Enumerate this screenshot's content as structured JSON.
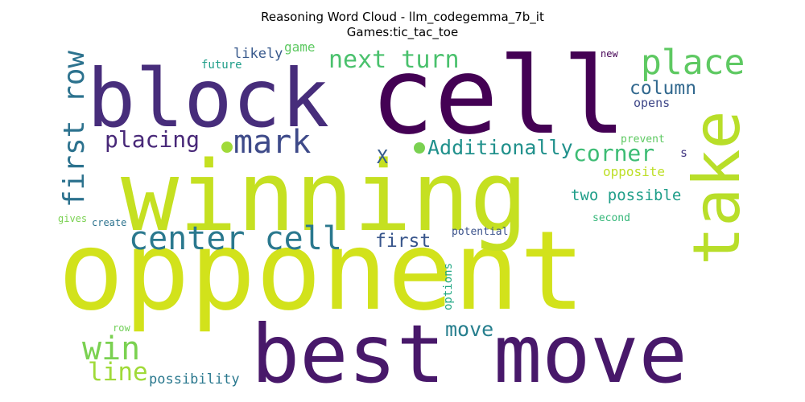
{
  "chart_data": {
    "type": "wordcloud",
    "title": "Reasoning Word Cloud - llm_codegemma_7b_it",
    "subtitle": "Games:tic_tac_toe",
    "words": [
      {
        "text": "opponent",
        "color": "#d2e21b"
      },
      {
        "text": "winning",
        "color": "#c5e021"
      },
      {
        "text": "cell",
        "color": "#440154"
      },
      {
        "text": "best move",
        "color": "#48186a"
      },
      {
        "text": "block",
        "color": "#472d7b"
      },
      {
        "text": "take",
        "color": "#b8de29"
      },
      {
        "text": "place",
        "color": "#5ec962"
      },
      {
        "text": "center cell",
        "color": "#2a788e"
      },
      {
        "text": "first row",
        "color": "#2c728e"
      },
      {
        "text": "mark",
        "color": "#3e4a89"
      },
      {
        "text": "next turn",
        "color": "#4ac16d"
      },
      {
        "text": "win",
        "color": "#7ad151"
      },
      {
        "text": "line",
        "color": "#a0da39"
      },
      {
        "text": "placing",
        "color": "#482878"
      },
      {
        "text": "Additionally",
        "color": "#21918c"
      },
      {
        "text": "corner",
        "color": "#3dbc74"
      },
      {
        "text": "column",
        "color": "#31688e"
      },
      {
        "text": "move",
        "color": "#277f8e"
      },
      {
        "text": "first",
        "color": "#39568c"
      },
      {
        "text": "two possible",
        "color": "#1f9e89"
      },
      {
        "text": "X",
        "color": "#365c8d"
      },
      {
        "text": "possibility",
        "color": "#2a788e"
      },
      {
        "text": "opposite",
        "color": "#bddf26"
      },
      {
        "text": "likely",
        "color": "#38598c"
      },
      {
        "text": "game",
        "color": "#5ec962"
      },
      {
        "text": "opens",
        "color": "#3f4788"
      },
      {
        "text": "future",
        "color": "#1f9e89"
      },
      {
        "text": "options",
        "color": "#22a884"
      },
      {
        "text": "potential",
        "color": "#3b528b"
      },
      {
        "text": "second",
        "color": "#35b779"
      },
      {
        "text": "prevent",
        "color": "#5ec962"
      },
      {
        "text": "gives",
        "color": "#7ad151"
      },
      {
        "text": "create",
        "color": "#2c728e"
      },
      {
        "text": "row",
        "color": "#70cf57"
      },
      {
        "text": "s",
        "color": "#443983"
      },
      {
        "text": "new",
        "color": "#440154"
      }
    ],
    "dots": [
      {
        "color": "#a0da39"
      },
      {
        "color": "#7ad151"
      }
    ]
  }
}
